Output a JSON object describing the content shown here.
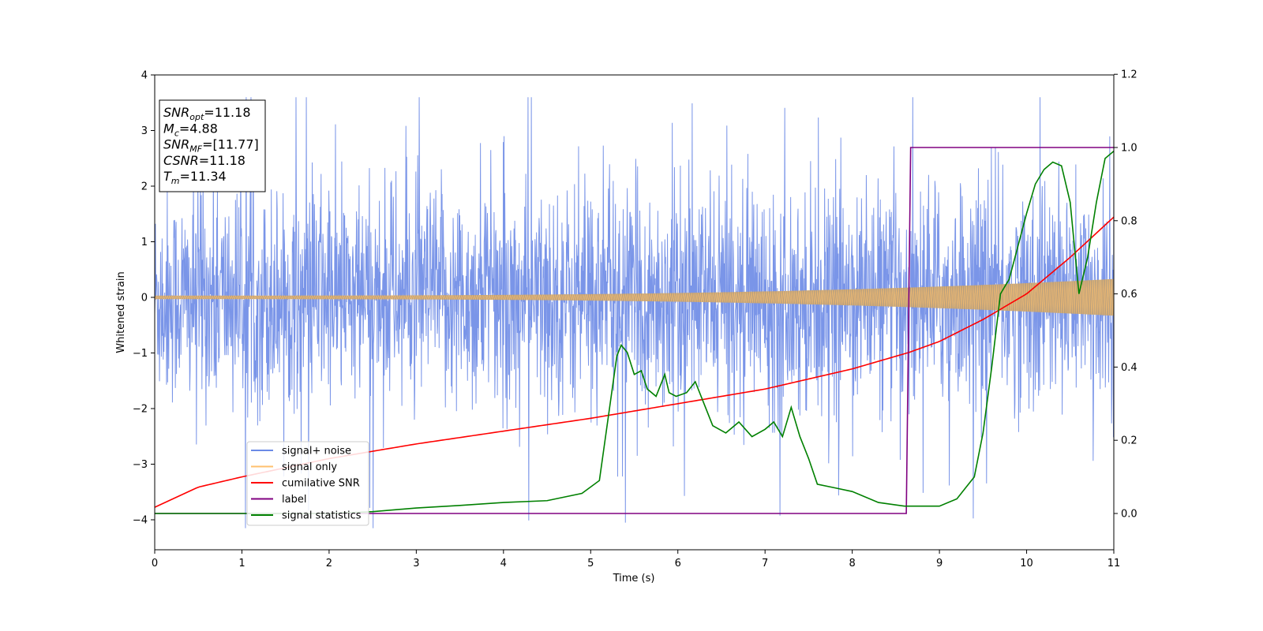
{
  "chart_data": {
    "type": "line",
    "xlabel": "Time (s)",
    "ylabel": "Whitened strain",
    "xlim": [
      0,
      11
    ],
    "ylim": [
      -4.55,
      4
    ],
    "y2lim": [
      -0.1,
      1.2
    ],
    "x_ticks": [
      "0",
      "1",
      "2",
      "3",
      "4",
      "5",
      "6",
      "7",
      "8",
      "9",
      "10",
      "11"
    ],
    "y_ticks": [
      "4",
      "3",
      "2",
      "1",
      "0",
      "−1",
      "−2",
      "−3",
      "−4"
    ],
    "y2_ticks": [
      "1.2",
      "1.0",
      "0.8",
      "0.6",
      "0.4",
      "0.2",
      "0.0"
    ],
    "legend_position": "lower-left",
    "annotation": [
      {
        "main": "SNR",
        "sub": "opt",
        "rest": "=11.18"
      },
      {
        "main": "M",
        "sub": "c",
        "rest": "=4.88"
      },
      {
        "main": "SNR",
        "sub": "MF",
        "rest": "=[11.77]"
      },
      {
        "main": "CSNR",
        "sub": "",
        "rest": "=11.18"
      },
      {
        "main": "T",
        "sub": "m",
        "rest": "=11.34"
      }
    ],
    "series": [
      {
        "name": "signal+ noise",
        "color": "#6b8ae6",
        "axis": "left",
        "description_values": {
          "amplitude_range": [
            -4.15,
            3.6
          ],
          "typical_envelope": 1.4
        }
      },
      {
        "name": "signal only",
        "color": "#ffc06e",
        "axis": "left",
        "description_values": {
          "envelope_start": 0.03,
          "envelope_end": 0.33
        }
      },
      {
        "name": "cumilative SNR",
        "color": "#ff0000",
        "axis": "right",
        "x": [
          0,
          0.5,
          1,
          2,
          3,
          4,
          5,
          6,
          7,
          8,
          8.65,
          9,
          9.5,
          10,
          10.5,
          11
        ],
        "y": [
          0.017,
          0.072,
          0.1,
          0.15,
          0.19,
          0.225,
          0.26,
          0.3,
          0.34,
          0.395,
          0.44,
          0.47,
          0.53,
          0.6,
          0.7,
          0.81
        ]
      },
      {
        "name": "label",
        "color": "#800080",
        "axis": "right",
        "x": [
          0,
          8.62,
          8.67,
          11
        ],
        "y": [
          0.0,
          0.0,
          1.0,
          1.0
        ]
      },
      {
        "name": "signal statistics",
        "color": "#008000",
        "axis": "right",
        "x": [
          0,
          1,
          2,
          2.5,
          3,
          3.5,
          4,
          4.5,
          4.9,
          5.1,
          5.2,
          5.3,
          5.35,
          5.42,
          5.5,
          5.58,
          5.65,
          5.75,
          5.85,
          5.9,
          5.98,
          6.1,
          6.2,
          6.3,
          6.4,
          6.55,
          6.7,
          6.85,
          7.0,
          7.1,
          7.2,
          7.3,
          7.4,
          7.5,
          7.6,
          7.8,
          8.0,
          8.3,
          8.6,
          8.7,
          9.0,
          9.2,
          9.3,
          9.4,
          9.5,
          9.6,
          9.65,
          9.7,
          9.8,
          9.9,
          10.0,
          10.1,
          10.2,
          10.3,
          10.4,
          10.5,
          10.6,
          10.7,
          10.8,
          10.9,
          11
        ],
        "y": [
          0.0,
          0.0,
          0.0,
          0.005,
          0.015,
          0.022,
          0.03,
          0.035,
          0.055,
          0.09,
          0.26,
          0.43,
          0.46,
          0.44,
          0.38,
          0.39,
          0.34,
          0.32,
          0.38,
          0.33,
          0.32,
          0.33,
          0.36,
          0.3,
          0.24,
          0.22,
          0.25,
          0.21,
          0.23,
          0.25,
          0.21,
          0.29,
          0.21,
          0.15,
          0.08,
          0.07,
          0.06,
          0.03,
          0.02,
          0.02,
          0.02,
          0.04,
          0.07,
          0.1,
          0.22,
          0.4,
          0.5,
          0.6,
          0.64,
          0.73,
          0.82,
          0.9,
          0.94,
          0.96,
          0.95,
          0.85,
          0.6,
          0.7,
          0.85,
          0.97,
          0.99
        ]
      }
    ]
  }
}
